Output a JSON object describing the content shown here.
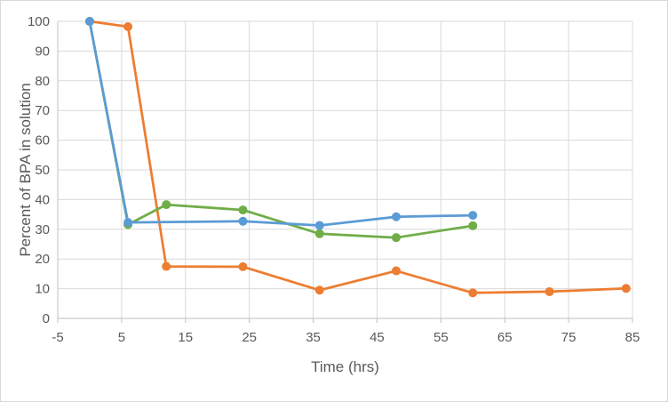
{
  "chart_data": {
    "type": "line",
    "title": "",
    "xlabel": "Time (hrs)",
    "ylabel": "Percent of BPA in solution",
    "xlim": [
      -5,
      85
    ],
    "ylim": [
      0,
      100
    ],
    "x_ticks": [
      -5,
      5,
      15,
      25,
      35,
      45,
      55,
      65,
      75,
      85
    ],
    "y_ticks": [
      0,
      10,
      20,
      30,
      40,
      50,
      60,
      70,
      80,
      90,
      100
    ],
    "x_tick_labels": [
      "-5",
      "5",
      "15",
      "25",
      "35",
      "45",
      "55",
      "65",
      "75",
      "85"
    ],
    "y_tick_labels": [
      "0",
      "10",
      "20",
      "30",
      "40",
      "50",
      "60",
      "70",
      "80",
      "90",
      "100"
    ],
    "grid": true,
    "legend": "none",
    "series": [
      {
        "color": "#ED7D31",
        "x": [
          0,
          6,
          12,
          24,
          36,
          48,
          60,
          72,
          84
        ],
        "y": [
          100,
          98.2,
          17.5,
          17.4,
          9.5,
          16,
          8.6,
          9,
          10.1
        ]
      },
      {
        "color": "#70AD47",
        "x": [
          0,
          6,
          12,
          24,
          36,
          48,
          60
        ],
        "y": [
          100,
          31.6,
          38.3,
          36.5,
          28.5,
          27.2,
          31.2
        ]
      },
      {
        "color": "#5B9BD5",
        "x": [
          0,
          6,
          24,
          36,
          48,
          60
        ],
        "y": [
          100,
          32.3,
          32.7,
          31.3,
          34.2,
          34.7
        ]
      }
    ]
  }
}
